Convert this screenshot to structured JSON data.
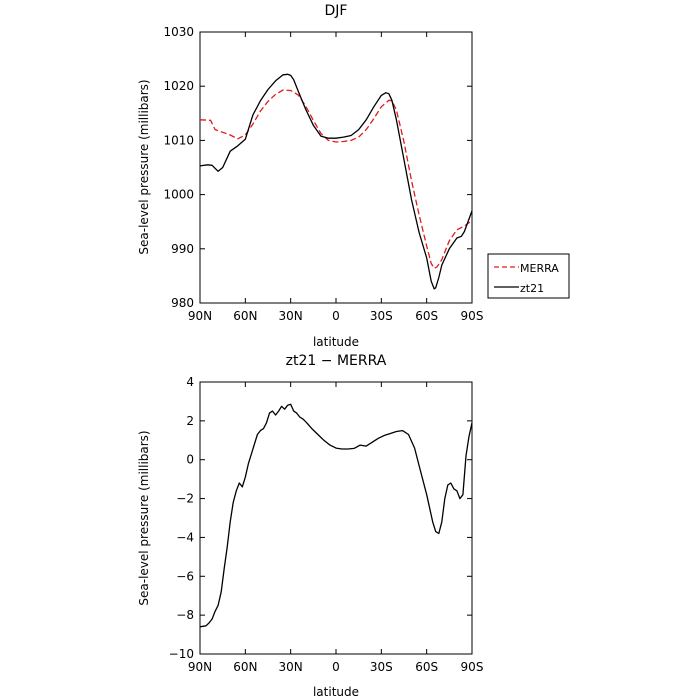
{
  "chart_data": [
    {
      "type": "line",
      "title": "DJF",
      "xlabel": "latitude",
      "ylabel": "Sea-level pressure (millibars)",
      "xlim": [
        90,
        -90
      ],
      "ylim": [
        980,
        1030
      ],
      "x_tick_values": [
        90,
        60,
        30,
        0,
        -30,
        -60,
        -90
      ],
      "x_tick_labels": [
        "90N",
        "60N",
        "30N",
        "0",
        "30S",
        "60S",
        "90S"
      ],
      "y_tick_values": [
        980,
        990,
        1000,
        1010,
        1020,
        1030
      ],
      "y_tick_labels": [
        "980",
        "990",
        "1000",
        "1010",
        "1020",
        "1030"
      ],
      "grid": false,
      "legend": {
        "position": "outside-right",
        "entries": [
          "MERRA",
          "zt21"
        ]
      },
      "series": [
        {
          "name": "MERRA",
          "color": "#e31a1c",
          "dash": "dashed",
          "x": [
            90,
            83,
            80,
            75,
            70,
            65,
            60,
            55,
            50,
            45,
            40,
            35,
            30,
            25,
            20,
            15,
            10,
            5,
            0,
            -5,
            -10,
            -15,
            -20,
            -25,
            -30,
            -35,
            -37,
            -40,
            -45,
            -50,
            -55,
            -60,
            -63,
            -65,
            -67,
            -70,
            -75,
            -80,
            -85,
            -90
          ],
          "y": [
            1013.8,
            1013.7,
            1012,
            1011.5,
            1011,
            1010.3,
            1011,
            1013,
            1015.4,
            1017.2,
            1018.5,
            1019.3,
            1019.2,
            1018.4,
            1016.3,
            1013.7,
            1011.3,
            1010,
            1009.7,
            1009.8,
            1010,
            1010.6,
            1012,
            1014,
            1016.2,
            1017.4,
            1017.3,
            1015.6,
            1009.7,
            1002.5,
            996.3,
            990.5,
            987.3,
            986.4,
            986.7,
            988,
            991.5,
            993.5,
            994.2,
            995.2
          ]
        },
        {
          "name": "zt21",
          "color": "#000000",
          "dash": "solid",
          "x": [
            90,
            85,
            82,
            78,
            75,
            70,
            65,
            60,
            55,
            50,
            45,
            40,
            35,
            32,
            30,
            28,
            25,
            20,
            15,
            10,
            5,
            0,
            -5,
            -10,
            -15,
            -20,
            -25,
            -30,
            -33,
            -35,
            -37,
            -40,
            -45,
            -50,
            -55,
            -60,
            -63,
            -65,
            -66,
            -68,
            -70,
            -75,
            -80,
            -83,
            -85,
            -88,
            -90
          ],
          "y": [
            1005.3,
            1005.5,
            1005.4,
            1004.3,
            1005,
            1008,
            1009,
            1010.2,
            1014.7,
            1017.3,
            1019.4,
            1021,
            1022.1,
            1022.2,
            1022,
            1021.2,
            1019.1,
            1015.7,
            1012.8,
            1010.8,
            1010.4,
            1010.4,
            1010.6,
            1010.9,
            1012,
            1013.8,
            1016.2,
            1018.3,
            1018.8,
            1018.6,
            1017.4,
            1013.8,
            1006.4,
            999,
            993,
            988.3,
            984,
            982.6,
            982.8,
            984.7,
            987,
            990,
            992,
            992.3,
            993.2,
            995.5,
            997
          ]
        }
      ]
    },
    {
      "type": "line",
      "title": "zt21 − MERRA",
      "xlabel": "latitude",
      "ylabel": "Sea-level pressure (millibars)",
      "xlim": [
        90,
        -90
      ],
      "ylim": [
        -10,
        4
      ],
      "x_tick_values": [
        90,
        60,
        30,
        0,
        -30,
        -60,
        -90
      ],
      "x_tick_labels": [
        "90N",
        "60N",
        "30N",
        "0",
        "30S",
        "60S",
        "90S"
      ],
      "y_tick_values": [
        -10,
        -8,
        -6,
        -4,
        -2,
        0,
        2,
        4
      ],
      "y_tick_labels": [
        "−10",
        "−8",
        "−6",
        "−4",
        "−2",
        "0",
        "2",
        "4"
      ],
      "grid": false,
      "series": [
        {
          "color": "#000000",
          "dash": "solid",
          "x": [
            90,
            86,
            84,
            82,
            80,
            78,
            76,
            74,
            72,
            70,
            68,
            66,
            64,
            62,
            60,
            58,
            56,
            54,
            52,
            50,
            48,
            46,
            44,
            42,
            40,
            38,
            36,
            34,
            32,
            30,
            28,
            26,
            24,
            22,
            20,
            16,
            12,
            8,
            4,
            0,
            -4,
            -8,
            -12,
            -16,
            -20,
            -24,
            -28,
            -32,
            -36,
            -40,
            -44,
            -48,
            -52,
            -56,
            -60,
            -62,
            -64,
            -66,
            -68,
            -70,
            -72,
            -74,
            -76,
            -78,
            -80,
            -82,
            -84,
            -86,
            -88,
            -90
          ],
          "y": [
            -8.6,
            -8.55,
            -8.4,
            -8.2,
            -7.8,
            -7.5,
            -6.8,
            -5.6,
            -4.5,
            -3.2,
            -2.2,
            -1.6,
            -1.2,
            -1.4,
            -0.9,
            -0.2,
            0.3,
            0.8,
            1.3,
            1.5,
            1.6,
            1.9,
            2.4,
            2.5,
            2.3,
            2.5,
            2.75,
            2.6,
            2.8,
            2.85,
            2.5,
            2.4,
            2.2,
            2.1,
            1.95,
            1.6,
            1.3,
            1.0,
            0.75,
            0.6,
            0.55,
            0.55,
            0.58,
            0.75,
            0.7,
            0.9,
            1.1,
            1.25,
            1.35,
            1.45,
            1.5,
            1.3,
            0.6,
            -0.6,
            -1.8,
            -2.5,
            -3.2,
            -3.7,
            -3.8,
            -3.2,
            -2.0,
            -1.3,
            -1.2,
            -1.5,
            -1.6,
            -2.0,
            -1.8,
            0.2,
            1.2,
            1.9
          ]
        }
      ]
    }
  ]
}
